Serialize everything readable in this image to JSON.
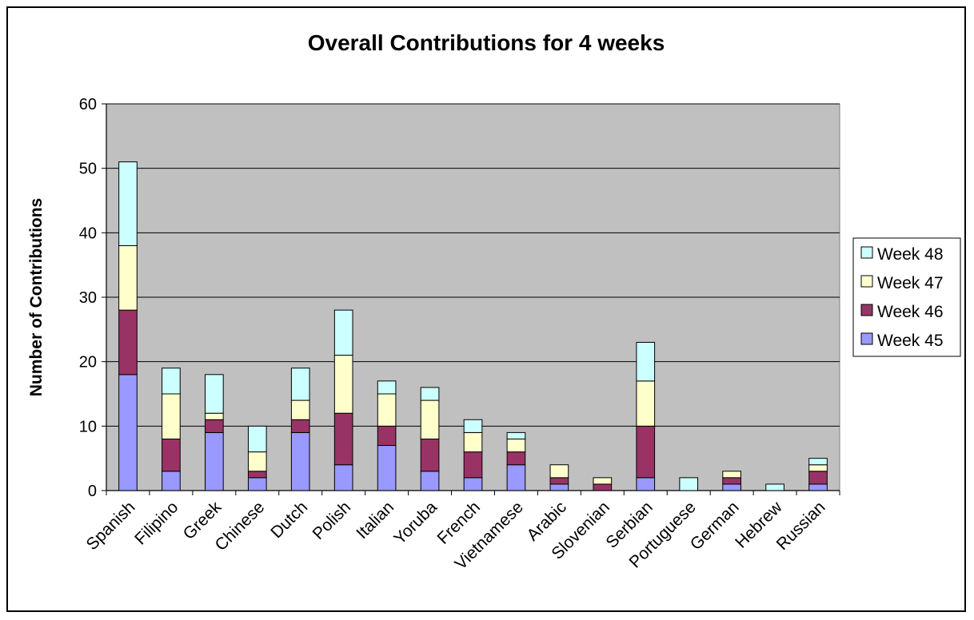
{
  "chart_data": {
    "type": "bar",
    "stacked": true,
    "title": "Overall Contributions for 4 weeks",
    "xlabel": "",
    "ylabel": "Number of Contributions",
    "ylim": [
      0,
      60
    ],
    "yticks": [
      0,
      10,
      20,
      30,
      40,
      50,
      60
    ],
    "grid": true,
    "legend_position": "right",
    "categories": [
      "Spanish",
      "Filipino",
      "Greek",
      "Chinese",
      "Dutch",
      "Polish",
      "Italian",
      "Yoruba",
      "French",
      "Vietnamese",
      "Arabic",
      "Slovenian",
      "Serbian",
      "Portuguese",
      "German",
      "Hebrew",
      "Russian"
    ],
    "series": [
      {
        "name": "Week 45",
        "color": "#9999ff",
        "values": [
          18,
          3,
          9,
          2,
          9,
          4,
          7,
          3,
          2,
          4,
          1,
          0,
          2,
          0,
          1,
          0,
          1
        ]
      },
      {
        "name": "Week 46",
        "color": "#993366",
        "values": [
          10,
          5,
          2,
          1,
          2,
          8,
          3,
          5,
          4,
          2,
          1,
          1,
          8,
          0,
          1,
          0,
          2
        ]
      },
      {
        "name": "Week 47",
        "color": "#ffffcc",
        "values": [
          10,
          7,
          1,
          3,
          3,
          9,
          5,
          6,
          3,
          2,
          2,
          1,
          7,
          0,
          1,
          0,
          1
        ]
      },
      {
        "name": "Week 48",
        "color": "#ccffff",
        "values": [
          13,
          4,
          6,
          4,
          5,
          7,
          2,
          2,
          2,
          1,
          0,
          0,
          6,
          2,
          0,
          1,
          1
        ]
      }
    ],
    "plot_background": "#c0c0c0"
  }
}
